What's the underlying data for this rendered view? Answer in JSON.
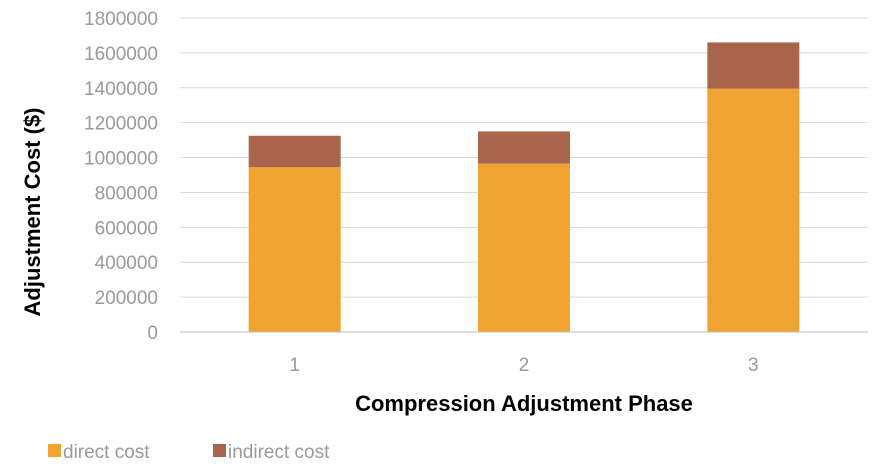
{
  "chart_data": {
    "type": "bar",
    "stacked": true,
    "categories": [
      "1",
      "2",
      "3"
    ],
    "series": [
      {
        "name": "direct cost",
        "color": "#F0A330",
        "values": [
          945000,
          965000,
          1395000
        ]
      },
      {
        "name": "indirect cost",
        "color": "#A9654C",
        "values": [
          180000,
          185000,
          265000
        ]
      }
    ],
    "xlabel": "Compression Adjustment Phase",
    "ylabel": "Adjustment Cost ($)",
    "ylim": [
      0,
      1800000
    ],
    "yticks": [
      "0",
      "200000",
      "400000",
      "600000",
      "800000",
      "1000000",
      "1200000",
      "1400000",
      "1600000",
      "1800000"
    ],
    "grid": true,
    "legend": "bottom-left"
  }
}
